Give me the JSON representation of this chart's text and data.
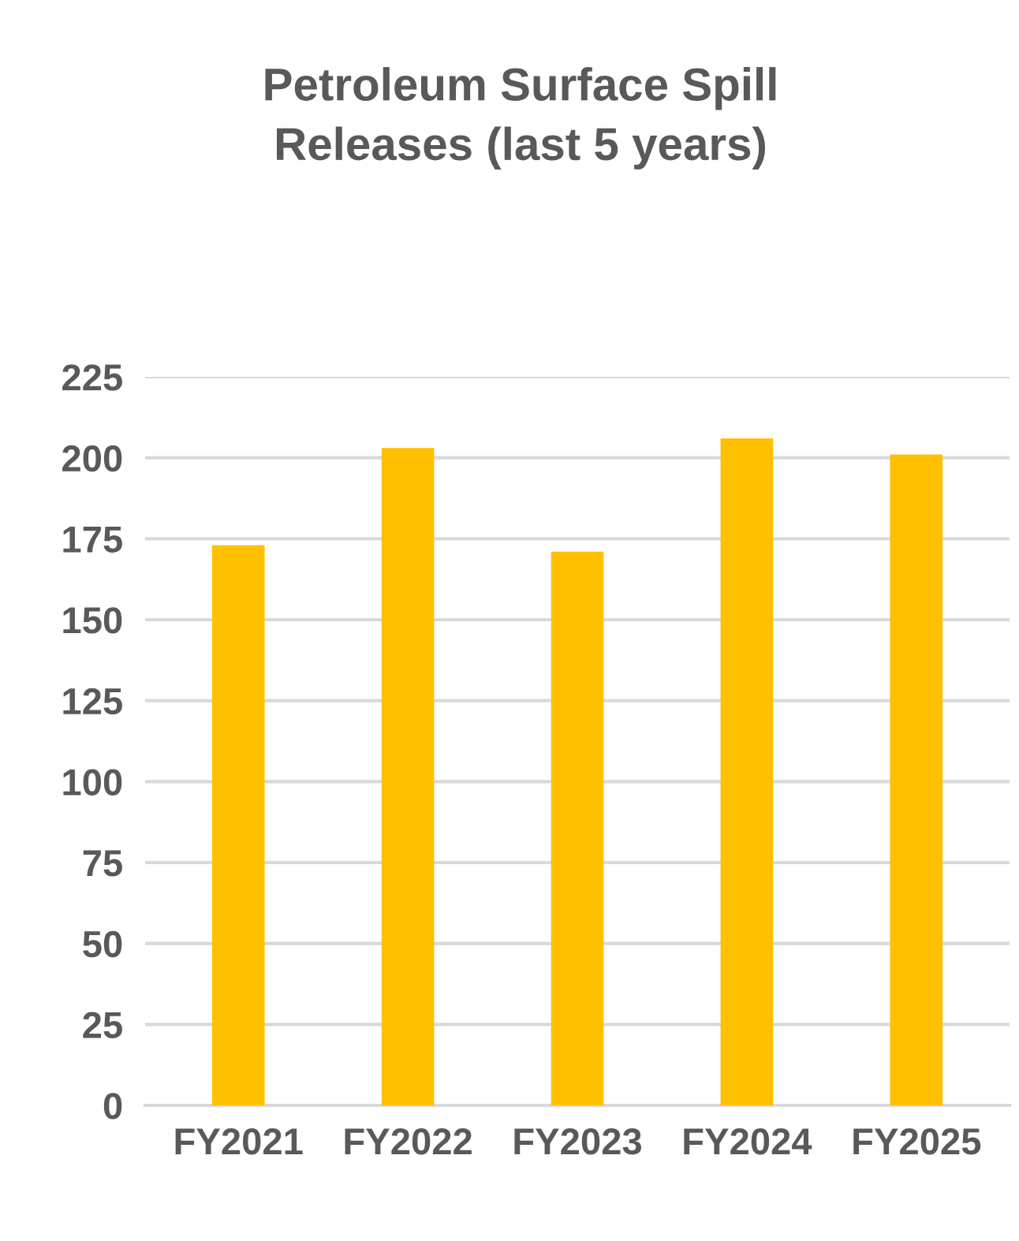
{
  "chart_data": {
    "type": "bar",
    "title": "Petroleum Surface Spill\nReleases (last 5 years)",
    "categories": [
      "FY2021",
      "FY2022",
      "FY2023",
      "FY2024",
      "FY2025"
    ],
    "values": [
      173,
      203,
      171,
      206,
      201
    ],
    "color": "#ffc000",
    "ylim": [
      0,
      225
    ],
    "yticks": [
      0,
      25,
      50,
      75,
      100,
      125,
      150,
      175,
      200,
      225
    ],
    "grid": "y",
    "legend": false
  }
}
